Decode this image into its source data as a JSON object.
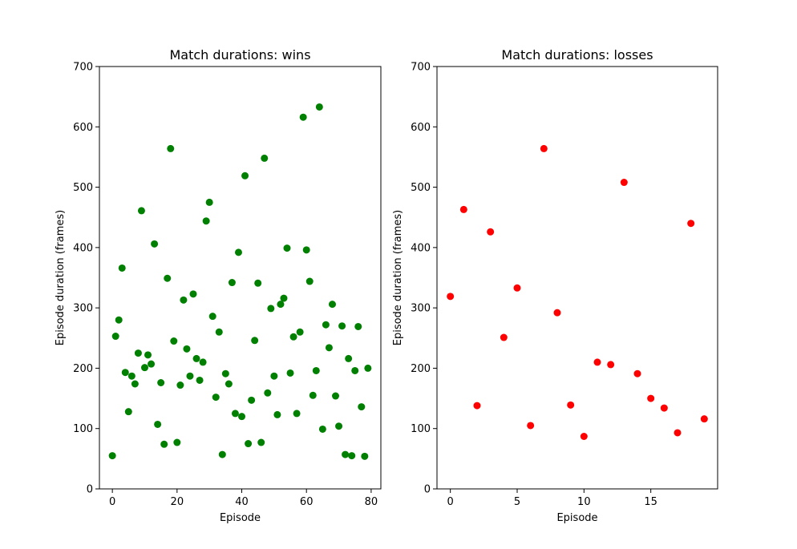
{
  "chart_data": [
    {
      "type": "scatter",
      "title": "Match durations: wins",
      "xlabel": "Episode",
      "ylabel": "Episode duration (frames)",
      "xlim": [
        -4,
        83
      ],
      "ylim": [
        0,
        700
      ],
      "xticks": [
        0,
        20,
        40,
        60,
        80
      ],
      "yticks": [
        0,
        100,
        200,
        300,
        400,
        500,
        600,
        700
      ],
      "grid": false,
      "color": "#008000",
      "x": [
        0,
        1,
        2,
        3,
        4,
        5,
        6,
        7,
        8,
        9,
        10,
        11,
        12,
        13,
        14,
        15,
        16,
        17,
        18,
        19,
        20,
        21,
        22,
        23,
        24,
        25,
        26,
        27,
        28,
        29,
        30,
        31,
        32,
        33,
        34,
        35,
        36,
        37,
        38,
        39,
        40,
        41,
        42,
        43,
        44,
        45,
        46,
        47,
        48,
        49,
        50,
        51,
        52,
        53,
        54,
        55,
        56,
        57,
        58,
        59,
        60,
        61,
        62,
        63,
        64,
        65,
        66,
        67,
        68,
        69,
        70,
        71,
        72,
        73,
        74,
        75,
        76,
        77,
        78,
        79
      ],
      "y": [
        55,
        253,
        280,
        366,
        193,
        128,
        187,
        174,
        225,
        461,
        201,
        222,
        207,
        406,
        107,
        176,
        74,
        349,
        564,
        245,
        77,
        172,
        313,
        232,
        187,
        323,
        216,
        180,
        210,
        444,
        475,
        286,
        152,
        260,
        57,
        191,
        174,
        342,
        125,
        392,
        120,
        519,
        75,
        147,
        246,
        341,
        77,
        548,
        159,
        299,
        187,
        123,
        306,
        316,
        399,
        192,
        252,
        125,
        260,
        616,
        396,
        344,
        155,
        196,
        633,
        99,
        272,
        234,
        306,
        154,
        104,
        270,
        57,
        216,
        55,
        196,
        269,
        136,
        54,
        200
      ]
    },
    {
      "type": "scatter",
      "title": "Match durations: losses",
      "xlabel": "Episode",
      "ylabel": "Episode duration (frames)",
      "xlim": [
        -1,
        20
      ],
      "ylim": [
        0,
        700
      ],
      "xticks": [
        0,
        5,
        10,
        15
      ],
      "yticks": [
        0,
        100,
        200,
        300,
        400,
        500,
        600,
        700
      ],
      "grid": false,
      "color": "#ff0000",
      "x": [
        0,
        1,
        2,
        3,
        4,
        5,
        6,
        7,
        8,
        9,
        10,
        11,
        12,
        13,
        14,
        15,
        16,
        17,
        18,
        19
      ],
      "y": [
        319,
        463,
        138,
        426,
        251,
        333,
        105,
        564,
        292,
        139,
        87,
        210,
        206,
        508,
        191,
        150,
        134,
        93,
        440,
        116
      ]
    }
  ]
}
